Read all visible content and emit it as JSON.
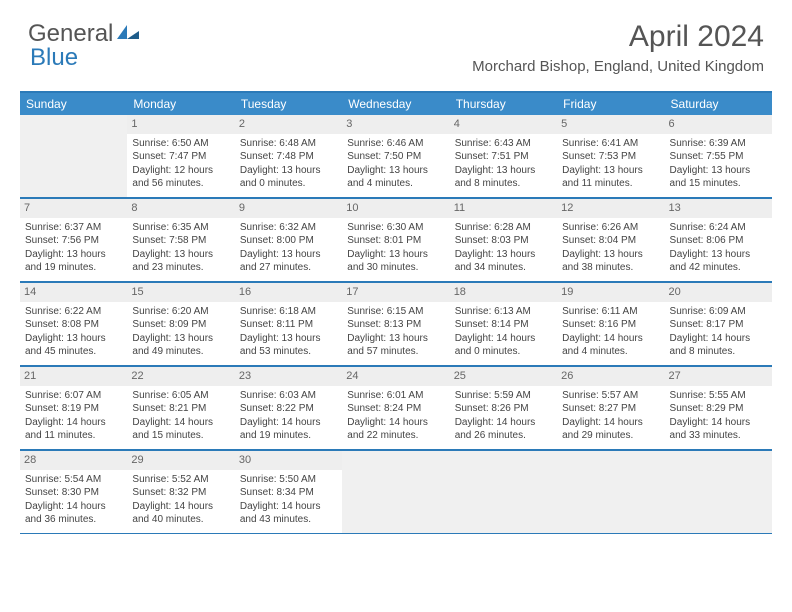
{
  "logo": {
    "text_a": "General",
    "text_b": "Blue",
    "accent": "#2b7ab8"
  },
  "title": "April 2024",
  "location": "Morchard Bishop, England, United Kingdom",
  "colors": {
    "header_bg": "#3a8bc9",
    "border": "#2b7ab8",
    "daynum_bg": "#eeeeee",
    "empty_bg": "#f0f0f0",
    "text": "#444444"
  },
  "day_headers": [
    "Sunday",
    "Monday",
    "Tuesday",
    "Wednesday",
    "Thursday",
    "Friday",
    "Saturday"
  ],
  "weeks": [
    [
      null,
      {
        "n": "1",
        "sr": "6:50 AM",
        "ss": "7:47 PM",
        "dl": "12 hours and 56 minutes."
      },
      {
        "n": "2",
        "sr": "6:48 AM",
        "ss": "7:48 PM",
        "dl": "13 hours and 0 minutes."
      },
      {
        "n": "3",
        "sr": "6:46 AM",
        "ss": "7:50 PM",
        "dl": "13 hours and 4 minutes."
      },
      {
        "n": "4",
        "sr": "6:43 AM",
        "ss": "7:51 PM",
        "dl": "13 hours and 8 minutes."
      },
      {
        "n": "5",
        "sr": "6:41 AM",
        "ss": "7:53 PM",
        "dl": "13 hours and 11 minutes."
      },
      {
        "n": "6",
        "sr": "6:39 AM",
        "ss": "7:55 PM",
        "dl": "13 hours and 15 minutes."
      }
    ],
    [
      {
        "n": "7",
        "sr": "6:37 AM",
        "ss": "7:56 PM",
        "dl": "13 hours and 19 minutes."
      },
      {
        "n": "8",
        "sr": "6:35 AM",
        "ss": "7:58 PM",
        "dl": "13 hours and 23 minutes."
      },
      {
        "n": "9",
        "sr": "6:32 AM",
        "ss": "8:00 PM",
        "dl": "13 hours and 27 minutes."
      },
      {
        "n": "10",
        "sr": "6:30 AM",
        "ss": "8:01 PM",
        "dl": "13 hours and 30 minutes."
      },
      {
        "n": "11",
        "sr": "6:28 AM",
        "ss": "8:03 PM",
        "dl": "13 hours and 34 minutes."
      },
      {
        "n": "12",
        "sr": "6:26 AM",
        "ss": "8:04 PM",
        "dl": "13 hours and 38 minutes."
      },
      {
        "n": "13",
        "sr": "6:24 AM",
        "ss": "8:06 PM",
        "dl": "13 hours and 42 minutes."
      }
    ],
    [
      {
        "n": "14",
        "sr": "6:22 AM",
        "ss": "8:08 PM",
        "dl": "13 hours and 45 minutes."
      },
      {
        "n": "15",
        "sr": "6:20 AM",
        "ss": "8:09 PM",
        "dl": "13 hours and 49 minutes."
      },
      {
        "n": "16",
        "sr": "6:18 AM",
        "ss": "8:11 PM",
        "dl": "13 hours and 53 minutes."
      },
      {
        "n": "17",
        "sr": "6:15 AM",
        "ss": "8:13 PM",
        "dl": "13 hours and 57 minutes."
      },
      {
        "n": "18",
        "sr": "6:13 AM",
        "ss": "8:14 PM",
        "dl": "14 hours and 0 minutes."
      },
      {
        "n": "19",
        "sr": "6:11 AM",
        "ss": "8:16 PM",
        "dl": "14 hours and 4 minutes."
      },
      {
        "n": "20",
        "sr": "6:09 AM",
        "ss": "8:17 PM",
        "dl": "14 hours and 8 minutes."
      }
    ],
    [
      {
        "n": "21",
        "sr": "6:07 AM",
        "ss": "8:19 PM",
        "dl": "14 hours and 11 minutes."
      },
      {
        "n": "22",
        "sr": "6:05 AM",
        "ss": "8:21 PM",
        "dl": "14 hours and 15 minutes."
      },
      {
        "n": "23",
        "sr": "6:03 AM",
        "ss": "8:22 PM",
        "dl": "14 hours and 19 minutes."
      },
      {
        "n": "24",
        "sr": "6:01 AM",
        "ss": "8:24 PM",
        "dl": "14 hours and 22 minutes."
      },
      {
        "n": "25",
        "sr": "5:59 AM",
        "ss": "8:26 PM",
        "dl": "14 hours and 26 minutes."
      },
      {
        "n": "26",
        "sr": "5:57 AM",
        "ss": "8:27 PM",
        "dl": "14 hours and 29 minutes."
      },
      {
        "n": "27",
        "sr": "5:55 AM",
        "ss": "8:29 PM",
        "dl": "14 hours and 33 minutes."
      }
    ],
    [
      {
        "n": "28",
        "sr": "5:54 AM",
        "ss": "8:30 PM",
        "dl": "14 hours and 36 minutes."
      },
      {
        "n": "29",
        "sr": "5:52 AM",
        "ss": "8:32 PM",
        "dl": "14 hours and 40 minutes."
      },
      {
        "n": "30",
        "sr": "5:50 AM",
        "ss": "8:34 PM",
        "dl": "14 hours and 43 minutes."
      },
      null,
      null,
      null,
      null
    ]
  ],
  "labels": {
    "sunrise": "Sunrise: ",
    "sunset": "Sunset: ",
    "daylight": "Daylight: "
  }
}
